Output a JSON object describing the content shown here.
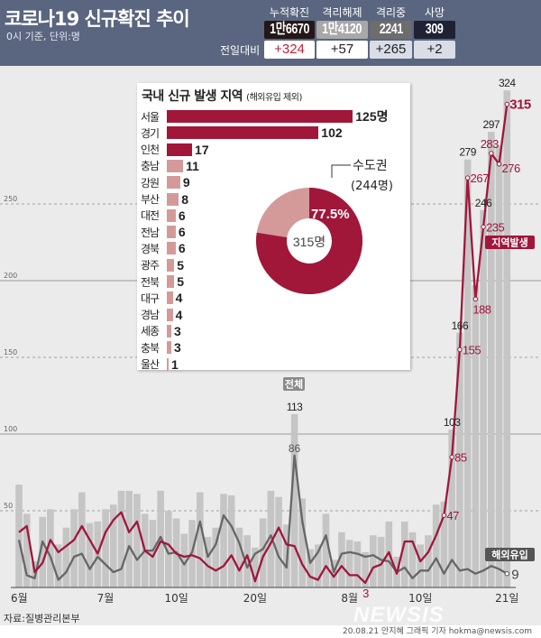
{
  "header": {
    "title": "코로나19 신규확진 추이",
    "subtitle": "0시 기준, 단위:명",
    "compare_label": "전일대비",
    "stats": [
      {
        "label": "누적확진",
        "value": "1만6670",
        "delta": "+324",
        "box_color": "#231815",
        "delta_color": "#c0233a",
        "delta_bg": "#ffffff"
      },
      {
        "label": "격리해제",
        "value": "1만4120",
        "delta": "+57",
        "box_color": "#a8a8a8",
        "delta_color": "#222222",
        "delta_bg": "#ffffff"
      },
      {
        "label": "격리중",
        "value": "2241",
        "delta": "+265",
        "box_color": "#6d6d6d",
        "delta_color": "#222222",
        "delta_bg": "#d9dde6"
      },
      {
        "label": "사망",
        "value": "309",
        "delta": "+2",
        "box_color": "#1f2233",
        "delta_color": "#222222",
        "delta_bg": "#d9dde6"
      }
    ]
  },
  "inset": {
    "title": "국내 신규 발생 지역",
    "subtitle": "(해외유입 제외)",
    "regions": [
      {
        "name": "서울",
        "value": 125,
        "label": "125명"
      },
      {
        "name": "경기",
        "value": 102,
        "label": "102"
      },
      {
        "name": "인천",
        "value": 17,
        "label": "17"
      },
      {
        "name": "충남",
        "value": 11,
        "label": "11"
      },
      {
        "name": "강원",
        "value": 9,
        "label": "9"
      },
      {
        "name": "부산",
        "value": 8,
        "label": "8"
      },
      {
        "name": "대전",
        "value": 6,
        "label": "6"
      },
      {
        "name": "전남",
        "value": 6,
        "label": "6"
      },
      {
        "name": "경북",
        "value": 6,
        "label": "6"
      },
      {
        "name": "광주",
        "value": 5,
        "label": "5"
      },
      {
        "name": "전북",
        "value": 5,
        "label": "5"
      },
      {
        "name": "대구",
        "value": 4,
        "label": "4"
      },
      {
        "name": "경남",
        "value": 4,
        "label": "4"
      },
      {
        "name": "세종",
        "value": 3,
        "label": "3"
      },
      {
        "name": "충북",
        "value": 3,
        "label": "3"
      },
      {
        "name": "울산",
        "value": 1,
        "label": "1"
      }
    ],
    "capital_color": "#a0173a",
    "other_color": "#d49a9a",
    "donut": {
      "total_label": "315명",
      "share_percent": 77.5,
      "share_label": "77.5%",
      "area_label": "수도권",
      "area_count": "(244명)"
    }
  },
  "chart_data": {
    "type": "bar",
    "x": [
      "06-20",
      "06-21",
      "06-22",
      "06-23",
      "06-24",
      "06-25",
      "06-26",
      "06-27",
      "06-28",
      "06-29",
      "06-30",
      "07-01",
      "07-02",
      "07-03",
      "07-04",
      "07-05",
      "07-06",
      "07-07",
      "07-08",
      "07-09",
      "07-10",
      "07-11",
      "07-12",
      "07-13",
      "07-14",
      "07-15",
      "07-16",
      "07-17",
      "07-18",
      "07-19",
      "07-20",
      "07-21",
      "07-22",
      "07-23",
      "07-24",
      "07-25",
      "07-26",
      "07-27",
      "07-28",
      "07-29",
      "07-30",
      "07-31",
      "08-01",
      "08-02",
      "08-03",
      "08-04",
      "08-05",
      "08-06",
      "08-07",
      "08-08",
      "08-09",
      "08-10",
      "08-11",
      "08-12",
      "08-13",
      "08-14",
      "08-15",
      "08-16",
      "08-17",
      "08-18",
      "08-19",
      "08-20",
      "08-21"
    ],
    "x_tick_labels": [
      {
        "date": "06-20",
        "label": "6월"
      },
      {
        "date": "07-01",
        "label": "7월"
      },
      {
        "date": "07-10",
        "label": "10일"
      },
      {
        "date": "07-20",
        "label": "20일"
      },
      {
        "date": "08-01",
        "label": "8월"
      },
      {
        "date": "08-10",
        "label": "10일"
      },
      {
        "date": "08-21",
        "label": "21일"
      }
    ],
    "y_ticks": [
      50,
      100,
      150,
      200,
      250
    ],
    "ylim": [
      0,
      330
    ],
    "grid": true,
    "series": [
      {
        "name": "전체",
        "type": "bar",
        "color": "#c5c5c5",
        "values": [
          67,
          48,
          17,
          46,
          51,
          28,
          39,
          51,
          62,
          42,
          43,
          51,
          54,
          63,
          63,
          61,
          48,
          44,
          63,
          50,
          45,
          35,
          44,
          62,
          33,
          39,
          61,
          60,
          39,
          34,
          26,
          45,
          63,
          59,
          41,
          113,
          58,
          25,
          28,
          48,
          18,
          36,
          31,
          30,
          23,
          34,
          33,
          43,
          20,
          43,
          36,
          28,
          34,
          54,
          56,
          103,
          166,
          279,
          197,
          246,
          297,
          288,
          324
        ],
        "labels": [
          {
            "date": "07-25",
            "text": "113"
          },
          {
            "date": "08-14",
            "text": "103"
          },
          {
            "date": "08-15",
            "text": "166"
          },
          {
            "date": "08-16",
            "text": "279"
          },
          {
            "date": "08-18",
            "text": "246"
          },
          {
            "date": "08-19",
            "text": "297"
          },
          {
            "date": "08-21",
            "text": "324"
          }
        ]
      },
      {
        "name": "지역발생",
        "type": "line",
        "color": "#a0173a",
        "values": [
          36,
          40,
          10,
          16,
          31,
          23,
          27,
          31,
          40,
          31,
          22,
          36,
          44,
          49,
          36,
          43,
          24,
          20,
          30,
          28,
          22,
          20,
          21,
          19,
          14,
          11,
          14,
          21,
          11,
          21,
          4,
          20,
          29,
          39,
          28,
          27,
          15,
          7,
          5,
          14,
          7,
          14,
          8,
          8,
          3,
          13,
          15,
          23,
          9,
          30,
          30,
          17,
          23,
          34,
          47,
          85,
          155,
          267,
          188,
          235,
          283,
          276,
          315
        ],
        "labels": [
          {
            "date": "08-03",
            "text": "3"
          },
          {
            "date": "08-13",
            "text": "47"
          },
          {
            "date": "08-14",
            "text": "85"
          },
          {
            "date": "08-15",
            "text": "155"
          },
          {
            "date": "08-16",
            "text": "267"
          },
          {
            "date": "08-17",
            "text": "188"
          },
          {
            "date": "08-18",
            "text": "235"
          },
          {
            "date": "08-19",
            "text": "283"
          },
          {
            "date": "08-20",
            "text": "276"
          },
          {
            "date": "08-21",
            "text": "315"
          }
        ]
      },
      {
        "name": "해외유입",
        "type": "line",
        "color": "#666666",
        "values": [
          31,
          8,
          6,
          30,
          20,
          5,
          10,
          20,
          22,
          12,
          20,
          15,
          10,
          12,
          27,
          18,
          24,
          24,
          33,
          22,
          23,
          15,
          23,
          43,
          20,
          28,
          47,
          40,
          29,
          13,
          22,
          25,
          34,
          20,
          13,
          86,
          43,
          16,
          23,
          34,
          10,
          22,
          23,
          22,
          20,
          21,
          18,
          17,
          10,
          13,
          6,
          11,
          11,
          19,
          9,
          18,
          11,
          12,
          9,
          11,
          14,
          12,
          9
        ],
        "labels": [
          {
            "date": "07-25",
            "text": "86"
          },
          {
            "date": "08-21",
            "text": "9"
          }
        ]
      }
    ]
  },
  "source": "자료:질병관리본부",
  "credit": "20.08.21 안지혜 그래픽 기자 hokma@newsis.com",
  "watermark": "NEWSIS"
}
